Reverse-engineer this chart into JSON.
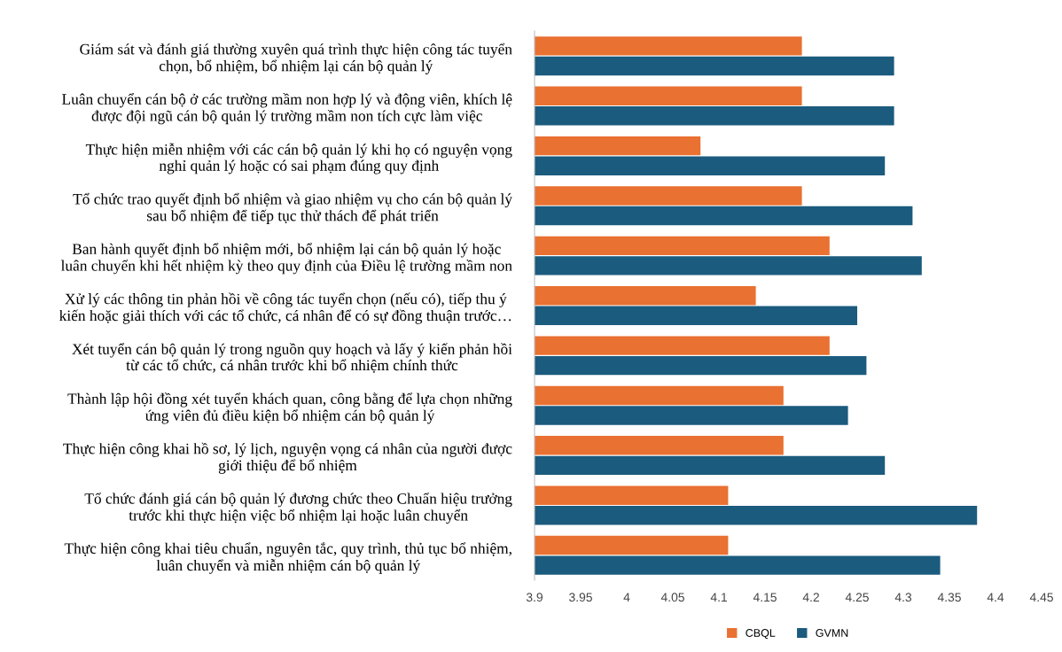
{
  "chart_data": {
    "type": "bar",
    "orientation": "horizontal",
    "categories": [
      "Giám sát và đánh giá thường xuyên quá trình thực hiện công tác tuyển\nchọn, bổ nhiệm, bổ nhiệm lại cán bộ quản lý",
      "Luân chuyển cán bộ ở các trường mầm non hợp lý và động viên, khích lệ\nđược đội ngũ cán bộ quản lý trường mầm non tích cực làm việc",
      "Thực hiện miễn nhiệm với các cán bộ quản lý khi họ có nguyện vọng\nnghỉ quản lý hoặc có sai phạm đúng quy định",
      "Tổ chức trao quyết định bổ nhiệm và giao nhiệm vụ cho cán bộ quản lý\nsau bổ nhiệm để tiếp tục thử thách để phát triển",
      "Ban hành quyết định bổ nhiệm mới, bổ nhiệm lại cán bộ quản lý hoặc\nluân chuyển khi hết nhiệm kỳ theo quy định của Điều lệ trường mầm non",
      "Xử lý các thông tin phản hồi về công tác tuyển chọn (nếu có), tiếp thu ý\nkiến hoặc giải thích với các tổ chức, cá nhân để có sự đồng thuận trước…",
      "Xét tuyển cán bộ quản lý trong nguồn quy hoạch và lấy ý kiến phản hồi\ntừ các tổ chức, cá nhân trước khi bổ nhiệm chính thức",
      "Thành lập hội đồng xét tuyển khách quan, công bằng để lựa chọn những\nứng viên đủ điều kiện bổ nhiệm cán bộ quản lý",
      "Thực hiện công khai hồ sơ, lý lịch, nguyện vọng cá nhân của người được\ngiới thiệu để bổ nhiệm",
      "Tổ chức đánh giá cán bộ quản lý đương chức theo Chuẩn hiệu trưởng\ntrước khi thực hiện việc bổ nhiệm lại hoặc luân chuyển",
      "Thực hiện công khai tiêu chuẩn, nguyên tắc, quy trình, thủ tục bổ nhiệm,\nluân chuyển và miễn nhiệm cán bộ quản lý"
    ],
    "series": [
      {
        "name": "CBQL",
        "color": "#e97132",
        "values": [
          4.19,
          4.19,
          4.08,
          4.19,
          4.22,
          4.14,
          4.22,
          4.17,
          4.17,
          4.11,
          4.11
        ]
      },
      {
        "name": "GVMN",
        "color": "#1b5b7e",
        "values": [
          4.29,
          4.29,
          4.28,
          4.31,
          4.32,
          4.25,
          4.26,
          4.24,
          4.28,
          4.38,
          4.34
        ]
      }
    ],
    "xlim": [
      3.9,
      4.45
    ],
    "xticks": [
      3.9,
      3.95,
      4,
      4.05,
      4.1,
      4.15,
      4.2,
      4.25,
      4.3,
      4.35,
      4.4,
      4.45
    ],
    "grid": false,
    "legend": "bottom"
  }
}
